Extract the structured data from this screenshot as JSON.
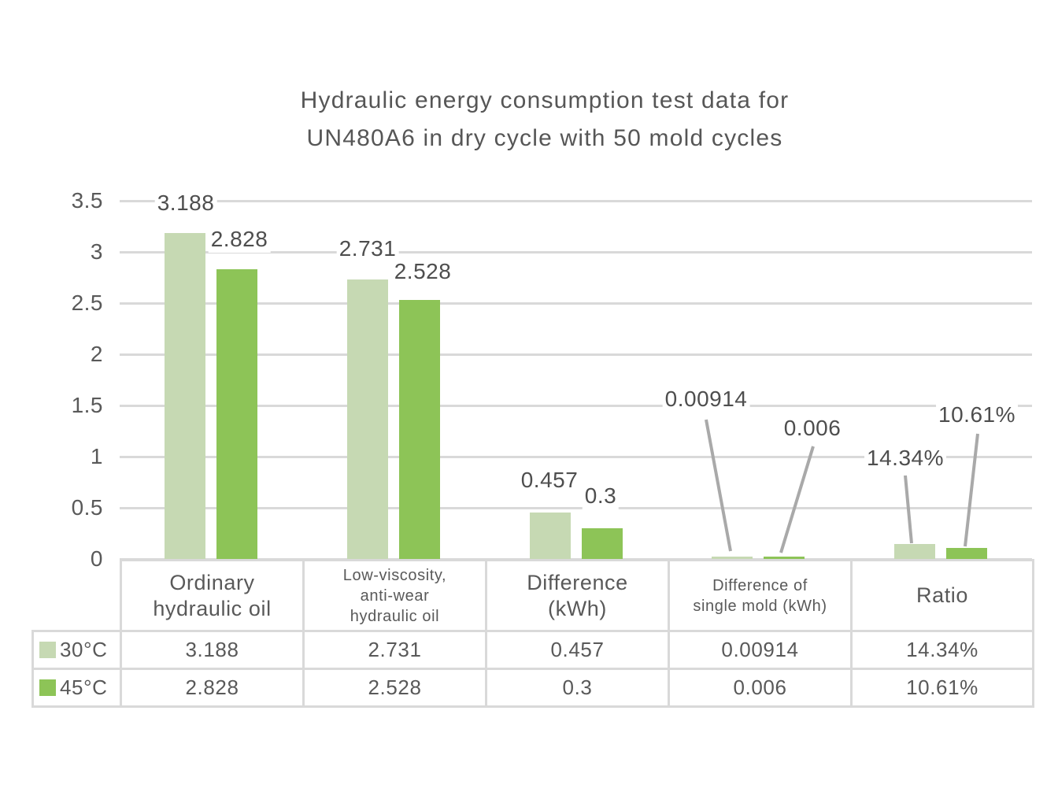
{
  "title": {
    "line1": "Hydraulic energy consumption test data for",
    "line2": "UN480A6 in dry cycle with 50 mold cycles"
  },
  "chart_data": {
    "type": "bar",
    "title": "Hydraulic energy consumption test data for UN480A6 in dry cycle with 50 mold cycles",
    "categories": [
      "Ordinary hydraulic oil",
      "Low-viscosity, anti-wear hydraulic oil",
      "Difference (kWh)",
      "Difference of single mold (kWh)",
      "Ratio"
    ],
    "series": [
      {
        "name": "30°C",
        "color": "#c6d9b3",
        "values": [
          3.188,
          2.731,
          0.457,
          0.00914,
          0.1434
        ],
        "labels": [
          "3.188",
          "2.731",
          "0.457",
          "0.00914",
          "14.34%"
        ]
      },
      {
        "name": "45°C",
        "color": "#8dc457",
        "values": [
          2.828,
          2.528,
          0.3,
          0.006,
          0.1061
        ],
        "labels": [
          "2.828",
          "2.528",
          "0.3",
          "0.006",
          "10.61%"
        ]
      }
    ],
    "xlabel": "",
    "ylabel": "",
    "ylim": [
      0,
      3.5
    ],
    "ytick_labels": [
      "0",
      "0.5",
      "1",
      "1.5",
      "2",
      "2.5",
      "3",
      "3.5"
    ],
    "grid": true,
    "legend_position": "left column of attached data table"
  },
  "table": {
    "column_headers": [
      "Ordinary\nhydraulic oil",
      "Low-viscosity,\nanti-wear\nhydraulic oil",
      "Difference\n(kWh)",
      "Difference of\nsingle mold (kWh)",
      "Ratio"
    ],
    "rows": [
      {
        "legend": "30°C",
        "values": [
          "3.188",
          "2.731",
          "0.457",
          "0.00914",
          "14.34%"
        ]
      },
      {
        "legend": "45°C",
        "values": [
          "2.828",
          "2.528",
          "0.3",
          "0.006",
          "10.61%"
        ]
      }
    ]
  },
  "colors": {
    "series_30c": "#c6d9b3",
    "series_45c": "#8dc457",
    "gridline": "#d9d9d9",
    "table_border": "#d9d9d9",
    "text": "#595959",
    "leader_line": "#a9a9a9",
    "background": "#ffffff"
  }
}
